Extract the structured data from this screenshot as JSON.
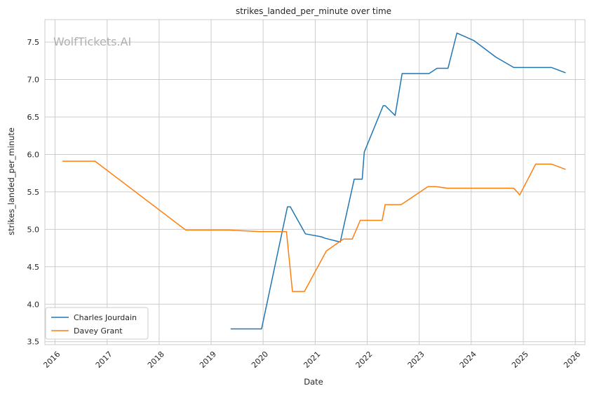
{
  "chart_data": {
    "type": "line",
    "title": "strikes_landed_per_minute over time",
    "xlabel": "Date",
    "ylabel": "strikes_landed_per_minute",
    "watermark": "WolfTickets.AI",
    "x_ticks": [
      "2016",
      "2017",
      "2018",
      "2019",
      "2020",
      "2021",
      "2022",
      "2023",
      "2024",
      "2025",
      "2026"
    ],
    "y_ticks": [
      "3.5",
      "4.0",
      "4.5",
      "5.0",
      "5.5",
      "6.0",
      "6.5",
      "7.0",
      "7.5"
    ],
    "xlim": [
      "2015-10-22",
      "2026-03-10"
    ],
    "ylim": [
      3.46,
      7.8
    ],
    "grid": true,
    "legend_position": "lower-left",
    "series": [
      {
        "name": "Charles Jourdain",
        "color": "#1f77b4",
        "points": [
          [
            "2019-05-18",
            3.67
          ],
          [
            "2019-12-21",
            3.67
          ],
          [
            "2020-06-20",
            5.3
          ],
          [
            "2020-07-10",
            5.3
          ],
          [
            "2020-10-24",
            4.94
          ],
          [
            "2021-02-13",
            4.9
          ],
          [
            "2021-03-13",
            4.88
          ],
          [
            "2021-06-26",
            4.83
          ],
          [
            "2021-10-02",
            5.67
          ],
          [
            "2021-11-27",
            5.67
          ],
          [
            "2021-12-11",
            6.03
          ],
          [
            "2022-04-23",
            6.65
          ],
          [
            "2022-05-07",
            6.65
          ],
          [
            "2022-07-16",
            6.52
          ],
          [
            "2022-09-03",
            7.08
          ],
          [
            "2023-03-11",
            7.08
          ],
          [
            "2023-05-06",
            7.15
          ],
          [
            "2023-07-22",
            7.15
          ],
          [
            "2023-09-23",
            7.62
          ],
          [
            "2024-01-20",
            7.52
          ],
          [
            "2024-06-22",
            7.3
          ],
          [
            "2024-10-26",
            7.16
          ],
          [
            "2025-07-19",
            7.16
          ],
          [
            "2025-10-25",
            7.09
          ]
        ]
      },
      {
        "name": "Davey Grant",
        "color": "#ff7f0e",
        "points": [
          [
            "2016-02-21",
            5.91
          ],
          [
            "2016-10-08",
            5.91
          ],
          [
            "2018-07-07",
            4.99
          ],
          [
            "2019-05-04",
            4.99
          ],
          [
            "2019-12-07",
            4.97
          ],
          [
            "2020-06-13",
            4.97
          ],
          [
            "2020-07-25",
            4.17
          ],
          [
            "2020-10-17",
            4.17
          ],
          [
            "2021-03-20",
            4.71
          ],
          [
            "2021-07-17",
            4.87
          ],
          [
            "2021-09-18",
            4.87
          ],
          [
            "2021-11-13",
            5.12
          ],
          [
            "2022-04-16",
            5.12
          ],
          [
            "2022-05-07",
            5.33
          ],
          [
            "2022-08-27",
            5.33
          ],
          [
            "2023-03-04",
            5.57
          ],
          [
            "2023-04-29",
            5.57
          ],
          [
            "2023-07-15",
            5.55
          ],
          [
            "2024-10-26",
            5.55
          ],
          [
            "2024-12-07",
            5.46
          ],
          [
            "2025-03-29",
            5.87
          ],
          [
            "2025-07-19",
            5.87
          ],
          [
            "2025-10-25",
            5.8
          ]
        ]
      }
    ]
  }
}
